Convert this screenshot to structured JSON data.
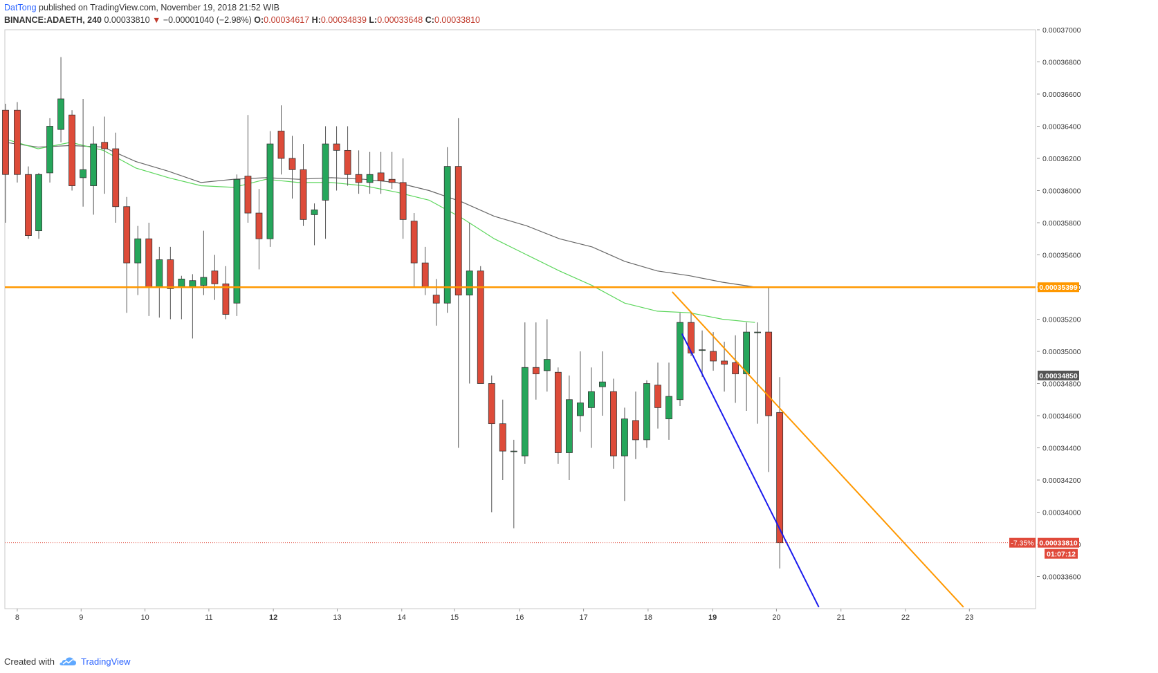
{
  "header": {
    "author": "DatTong",
    "published": "published on TradingView.com, November 19, 2018 21:52 WIB",
    "symbol": "BINANCE:ADAETH, 240",
    "last": "0.00033810",
    "change_arrow": "▼",
    "change": "−0.00001040 (−2.98%)",
    "o_label": "O:",
    "o": "0.00034617",
    "h_label": "H:",
    "h": "0.00034839",
    "l_label": "L:",
    "l": "0.00033648",
    "c_label": "C:",
    "c": "0.00033810"
  },
  "footer": {
    "created_with": "Created with",
    "brand": "TradingView",
    "logo_icon": "tradingview-cloud-icon"
  },
  "colors": {
    "up": "#26a65b",
    "down": "#dd4b39",
    "wick": "#555555",
    "ma_slow": "#666666",
    "ma_fast": "#5cd65c",
    "support": "#ff9800",
    "trend_blue": "#1a1aee",
    "trend_orange": "#ff9800",
    "price_badge": "#e0493a",
    "crosshair_badge": "#555555"
  },
  "chart_data": {
    "type": "candlestick",
    "timeframe": "240",
    "ylim": [
      0.000334,
      0.00037
    ],
    "xlim": [
      0,
      155
    ],
    "y_ticks": [
      "0.00037000",
      "0.00036800",
      "0.00036600",
      "0.00036400",
      "0.00036200",
      "0.00036000",
      "0.00035800",
      "0.00035600",
      "0.00035400",
      "0.00035200",
      "0.00035000",
      "0.00034800",
      "0.00034600",
      "0.00034400",
      "0.00034200",
      "0.00034000",
      "0.00033800",
      "0.00033600"
    ],
    "x_ticks": [
      {
        "label": "8",
        "t": 1.8,
        "bold": false
      },
      {
        "label": "9",
        "t": 11.6,
        "bold": false
      },
      {
        "label": "10",
        "t": 21.4,
        "bold": false
      },
      {
        "label": "11",
        "t": 31.2,
        "bold": false
      },
      {
        "label": "12",
        "t": 41.1,
        "bold": true
      },
      {
        "label": "13",
        "t": 50.9,
        "bold": false
      },
      {
        "label": "14",
        "t": 60.8,
        "bold": false
      },
      {
        "label": "15",
        "t": 68.9,
        "bold": false
      },
      {
        "label": "16",
        "t": 78.9,
        "bold": false
      },
      {
        "label": "17",
        "t": 88.7,
        "bold": false
      },
      {
        "label": "18",
        "t": 98.6,
        "bold": false
      },
      {
        "label": "19",
        "t": 108.5,
        "bold": true
      },
      {
        "label": "20",
        "t": 118.3,
        "bold": false
      },
      {
        "label": "21",
        "t": 128.2,
        "bold": false
      },
      {
        "label": "22",
        "t": 138.1,
        "bold": false
      },
      {
        "label": "23",
        "t": 147.9,
        "bold": false
      }
    ],
    "candles": [
      {
        "t": 0,
        "o": 0.000365,
        "h": 0.0003654,
        "l": 0.000358,
        "c": 0.000361
      },
      {
        "t": 1.8,
        "o": 0.000365,
        "h": 0.0003655,
        "l": 0.0003605,
        "c": 0.000361
      },
      {
        "t": 3.5,
        "o": 0.000361,
        "h": 0.0003615,
        "l": 0.000357,
        "c": 0.0003572
      },
      {
        "t": 5.1,
        "o": 0.0003575,
        "h": 0.0003611,
        "l": 0.000357,
        "c": 0.000361
      },
      {
        "t": 6.8,
        "o": 0.0003611,
        "h": 0.0003645,
        "l": 0.0003605,
        "c": 0.000364
      },
      {
        "t": 8.5,
        "o": 0.0003638,
        "h": 0.0003683,
        "l": 0.000363,
        "c": 0.0003657
      },
      {
        "t": 10.2,
        "o": 0.0003647,
        "h": 0.000365,
        "l": 0.00036,
        "c": 0.0003603
      },
      {
        "t": 11.9,
        "o": 0.0003608,
        "h": 0.0003657,
        "l": 0.000359,
        "c": 0.0003613
      },
      {
        "t": 13.5,
        "o": 0.0003603,
        "h": 0.000364,
        "l": 0.0003585,
        "c": 0.0003629
      },
      {
        "t": 15.2,
        "o": 0.000363,
        "h": 0.0003646,
        "l": 0.0003598,
        "c": 0.0003626
      },
      {
        "t": 16.9,
        "o": 0.0003626,
        "h": 0.0003636,
        "l": 0.000358,
        "c": 0.000359
      },
      {
        "t": 18.6,
        "o": 0.000359,
        "h": 0.0003596,
        "l": 0.0003524,
        "c": 0.0003555
      },
      {
        "t": 20.3,
        "o": 0.0003555,
        "h": 0.0003578,
        "l": 0.0003535,
        "c": 0.000357
      },
      {
        "t": 22.0,
        "o": 0.000357,
        "h": 0.000358,
        "l": 0.0003522,
        "c": 0.000354
      },
      {
        "t": 23.6,
        "o": 0.000354,
        "h": 0.0003565,
        "l": 0.0003521,
        "c": 0.0003557
      },
      {
        "t": 25.3,
        "o": 0.0003557,
        "h": 0.0003565,
        "l": 0.000352,
        "c": 0.0003539
      },
      {
        "t": 27.0,
        "o": 0.000354,
        "h": 0.0003547,
        "l": 0.000352,
        "c": 0.0003545
      },
      {
        "t": 28.7,
        "o": 0.000354,
        "h": 0.0003548,
        "l": 0.0003508,
        "c": 0.0003544
      },
      {
        "t": 30.4,
        "o": 0.0003541,
        "h": 0.0003575,
        "l": 0.0003535,
        "c": 0.0003546
      },
      {
        "t": 32.1,
        "o": 0.000355,
        "h": 0.000356,
        "l": 0.0003532,
        "c": 0.0003542
      },
      {
        "t": 33.8,
        "o": 0.0003542,
        "h": 0.0003553,
        "l": 0.000352,
        "c": 0.0003523
      },
      {
        "t": 35.5,
        "o": 0.000353,
        "h": 0.000361,
        "l": 0.0003522,
        "c": 0.0003607
      },
      {
        "t": 37.2,
        "o": 0.0003609,
        "h": 0.0003647,
        "l": 0.000358,
        "c": 0.0003586
      },
      {
        "t": 38.9,
        "o": 0.0003586,
        "h": 0.0003601,
        "l": 0.0003551,
        "c": 0.000357
      },
      {
        "t": 40.6,
        "o": 0.000357,
        "h": 0.0003637,
        "l": 0.0003565,
        "c": 0.0003629
      },
      {
        "t": 42.3,
        "o": 0.0003637,
        "h": 0.0003653,
        "l": 0.000361,
        "c": 0.000362
      },
      {
        "t": 44.0,
        "o": 0.000362,
        "h": 0.0003634,
        "l": 0.0003595,
        "c": 0.0003613
      },
      {
        "t": 45.7,
        "o": 0.0003613,
        "h": 0.0003629,
        "l": 0.0003578,
        "c": 0.0003582
      },
      {
        "t": 47.4,
        "o": 0.0003585,
        "h": 0.0003592,
        "l": 0.0003566,
        "c": 0.0003588
      },
      {
        "t": 49.1,
        "o": 0.0003594,
        "h": 0.000364,
        "l": 0.000357,
        "c": 0.0003629
      },
      {
        "t": 50.8,
        "o": 0.0003629,
        "h": 0.000364,
        "l": 0.00036,
        "c": 0.0003625
      },
      {
        "t": 52.5,
        "o": 0.0003625,
        "h": 0.000364,
        "l": 0.0003603,
        "c": 0.000361
      },
      {
        "t": 54.2,
        "o": 0.000361,
        "h": 0.0003625,
        "l": 0.0003598,
        "c": 0.0003605
      },
      {
        "t": 55.9,
        "o": 0.0003605,
        "h": 0.0003624,
        "l": 0.0003598,
        "c": 0.000361
      },
      {
        "t": 57.6,
        "o": 0.0003611,
        "h": 0.0003624,
        "l": 0.0003598,
        "c": 0.0003606
      },
      {
        "t": 59.3,
        "o": 0.0003607,
        "h": 0.0003624,
        "l": 0.0003601,
        "c": 0.0003605
      },
      {
        "t": 61.0,
        "o": 0.0003605,
        "h": 0.000362,
        "l": 0.000357,
        "c": 0.0003582
      },
      {
        "t": 62.7,
        "o": 0.0003581,
        "h": 0.0003586,
        "l": 0.000354,
        "c": 0.0003555
      },
      {
        "t": 64.4,
        "o": 0.0003555,
        "h": 0.0003565,
        "l": 0.0003535,
        "c": 0.000354
      },
      {
        "t": 66.1,
        "o": 0.0003535,
        "h": 0.0003545,
        "l": 0.0003516,
        "c": 0.000353
      },
      {
        "t": 67.8,
        "o": 0.000353,
        "h": 0.0003627,
        "l": 0.0003524,
        "c": 0.0003615
      },
      {
        "t": 69.5,
        "o": 0.0003615,
        "h": 0.0003645,
        "l": 0.000344,
        "c": 0.0003535
      },
      {
        "t": 71.2,
        "o": 0.0003535,
        "h": 0.000358,
        "l": 0.000348,
        "c": 0.000355
      },
      {
        "t": 72.9,
        "o": 0.000355,
        "h": 0.0003553,
        "l": 0.000348,
        "c": 0.000348
      },
      {
        "t": 74.6,
        "o": 0.000348,
        "h": 0.0003485,
        "l": 0.00034,
        "c": 0.0003455
      },
      {
        "t": 76.3,
        "o": 0.0003455,
        "h": 0.000347,
        "l": 0.000342,
        "c": 0.0003438
      },
      {
        "t": 78.0,
        "o": 0.0003438,
        "h": 0.0003445,
        "l": 0.000339,
        "c": 0.0003438
      },
      {
        "t": 79.7,
        "o": 0.0003435,
        "h": 0.0003518,
        "l": 0.000343,
        "c": 0.000349
      },
      {
        "t": 81.4,
        "o": 0.000349,
        "h": 0.0003518,
        "l": 0.000347,
        "c": 0.0003486
      },
      {
        "t": 83.1,
        "o": 0.0003488,
        "h": 0.000352,
        "l": 0.0003475,
        "c": 0.0003495
      },
      {
        "t": 84.8,
        "o": 0.0003487,
        "h": 0.000349,
        "l": 0.000343,
        "c": 0.0003437
      },
      {
        "t": 86.5,
        "o": 0.0003437,
        "h": 0.0003485,
        "l": 0.000342,
        "c": 0.000347
      },
      {
        "t": 88.2,
        "o": 0.000346,
        "h": 0.00035,
        "l": 0.000345,
        "c": 0.0003468
      },
      {
        "t": 89.9,
        "o": 0.0003465,
        "h": 0.000349,
        "l": 0.000344,
        "c": 0.0003475
      },
      {
        "t": 91.6,
        "o": 0.0003478,
        "h": 0.00035,
        "l": 0.000346,
        "c": 0.0003481
      },
      {
        "t": 93.3,
        "o": 0.0003475,
        "h": 0.0003483,
        "l": 0.0003427,
        "c": 0.0003435
      },
      {
        "t": 95.0,
        "o": 0.0003435,
        "h": 0.0003465,
        "l": 0.0003407,
        "c": 0.0003458
      },
      {
        "t": 96.7,
        "o": 0.0003457,
        "h": 0.0003475,
        "l": 0.0003433,
        "c": 0.0003445
      },
      {
        "t": 98.4,
        "o": 0.0003445,
        "h": 0.0003482,
        "l": 0.000344,
        "c": 0.000348
      },
      {
        "t": 100.1,
        "o": 0.0003479,
        "h": 0.0003493,
        "l": 0.0003452,
        "c": 0.0003465
      },
      {
        "t": 101.8,
        "o": 0.0003458,
        "h": 0.0003493,
        "l": 0.0003445,
        "c": 0.0003472
      },
      {
        "t": 103.5,
        "o": 0.000347,
        "h": 0.0003524,
        "l": 0.0003466,
        "c": 0.0003518
      },
      {
        "t": 105.2,
        "o": 0.0003518,
        "h": 0.0003524,
        "l": 0.0003497,
        "c": 0.0003499
      },
      {
        "t": 106.9,
        "o": 0.0003501,
        "h": 0.0003513,
        "l": 0.0003484,
        "c": 0.0003501
      },
      {
        "t": 108.6,
        "o": 0.00035,
        "h": 0.0003512,
        "l": 0.0003488,
        "c": 0.0003494
      },
      {
        "t": 110.3,
        "o": 0.0003494,
        "h": 0.0003506,
        "l": 0.0003475,
        "c": 0.0003492
      },
      {
        "t": 112.0,
        "o": 0.0003493,
        "h": 0.000351,
        "l": 0.0003468,
        "c": 0.0003486
      },
      {
        "t": 113.7,
        "o": 0.0003486,
        "h": 0.0003518,
        "l": 0.0003463,
        "c": 0.0003512
      },
      {
        "t": 115.4,
        "o": 0.0003512,
        "h": 0.0003518,
        "l": 0.0003455,
        "c": 0.0003512
      },
      {
        "t": 117.1,
        "o": 0.0003512,
        "h": 0.000354,
        "l": 0.0003425,
        "c": 0.000346
      },
      {
        "t": 118.8,
        "o": 0.0003462,
        "h": 0.0003484,
        "l": 0.0003365,
        "c": 0.0003381
      }
    ],
    "ma_slow": [
      [
        0,
        0.000363
      ],
      [
        5,
        0.0003627
      ],
      [
        10,
        0.0003628
      ],
      [
        15,
        0.0003627
      ],
      [
        20,
        0.0003618
      ],
      [
        25,
        0.0003612
      ],
      [
        30,
        0.0003605
      ],
      [
        35,
        0.0003607
      ],
      [
        40,
        0.0003608
      ],
      [
        45,
        0.0003607
      ],
      [
        50,
        0.0003608
      ],
      [
        55,
        0.0003607
      ],
      [
        60,
        0.0003605
      ],
      [
        65,
        0.00036
      ],
      [
        70,
        0.0003593
      ],
      [
        75,
        0.0003584
      ],
      [
        80,
        0.0003578
      ],
      [
        85,
        0.000357
      ],
      [
        90,
        0.0003565
      ],
      [
        95,
        0.0003556
      ],
      [
        100,
        0.000355
      ],
      [
        105,
        0.0003547
      ],
      [
        110,
        0.0003543
      ],
      [
        115,
        0.000354
      ]
    ],
    "ma_fast": [
      [
        0,
        0.0003632
      ],
      [
        5,
        0.0003626
      ],
      [
        10,
        0.000363
      ],
      [
        15,
        0.0003625
      ],
      [
        20,
        0.0003614
      ],
      [
        25,
        0.0003608
      ],
      [
        30,
        0.0003603
      ],
      [
        35,
        0.0003602
      ],
      [
        40,
        0.0003607
      ],
      [
        45,
        0.0003605
      ],
      [
        50,
        0.0003605
      ],
      [
        55,
        0.0003603
      ],
      [
        60,
        0.0003599
      ],
      [
        65,
        0.0003594
      ],
      [
        70,
        0.0003583
      ],
      [
        75,
        0.000357
      ],
      [
        80,
        0.000356
      ],
      [
        85,
        0.000355
      ],
      [
        90,
        0.0003541
      ],
      [
        95,
        0.000353
      ],
      [
        100,
        0.0003525
      ],
      [
        105,
        0.0003524
      ],
      [
        110,
        0.000352
      ],
      [
        115,
        0.0003518
      ]
    ],
    "support_level": 0.00035399,
    "support_label": "0.00035399",
    "trend_lines": [
      {
        "name": "blue-downtrend",
        "p1": [
          103.8,
          0.0003511
        ],
        "p2": [
          124.8,
          0.0003341
        ]
      },
      {
        "name": "orange-downtrend",
        "p1": [
          102.3,
          0.0003537
        ],
        "p2": [
          147.0,
          0.0003341
        ]
      }
    ],
    "current_price": 0.0003381,
    "current_price_label": "0.00033810",
    "change_pct_label": "-7.35%",
    "countdown_label": "01:07:12",
    "crosshair_price": 0.0003485,
    "crosshair_label": "0.00034850"
  }
}
